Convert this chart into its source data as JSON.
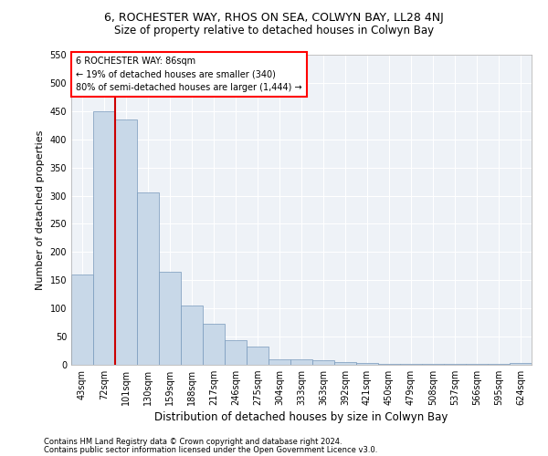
{
  "title1": "6, ROCHESTER WAY, RHOS ON SEA, COLWYN BAY, LL28 4NJ",
  "title2": "Size of property relative to detached houses in Colwyn Bay",
  "xlabel": "Distribution of detached houses by size in Colwyn Bay",
  "ylabel": "Number of detached properties",
  "footer1": "Contains HM Land Registry data © Crown copyright and database right 2024.",
  "footer2": "Contains public sector information licensed under the Open Government Licence v3.0.",
  "annotation_title": "6 ROCHESTER WAY: 86sqm",
  "annotation_line1": "← 19% of detached houses are smaller (340)",
  "annotation_line2": "80% of semi-detached houses are larger (1,444) →",
  "bar_color": "#c8d8e8",
  "bar_edge_color": "#7799bb",
  "red_line_color": "#cc0000",
  "categories": [
    "43sqm",
    "72sqm",
    "101sqm",
    "130sqm",
    "159sqm",
    "188sqm",
    "217sqm",
    "246sqm",
    "275sqm",
    "304sqm",
    "333sqm",
    "363sqm",
    "392sqm",
    "421sqm",
    "450sqm",
    "479sqm",
    "508sqm",
    "537sqm",
    "566sqm",
    "595sqm",
    "624sqm"
  ],
  "values": [
    160,
    450,
    435,
    305,
    165,
    105,
    73,
    44,
    32,
    10,
    10,
    8,
    5,
    3,
    2,
    1,
    1,
    1,
    1,
    1,
    4
  ],
  "red_line_x": 1.5,
  "ylim": [
    0,
    550
  ],
  "yticks": [
    0,
    50,
    100,
    150,
    200,
    250,
    300,
    350,
    400,
    450,
    500,
    550
  ],
  "bg_color": "#eef2f7",
  "grid_color": "#ffffff",
  "title1_fontsize": 9,
  "title2_fontsize": 8.5,
  "xlabel_fontsize": 8.5,
  "ylabel_fontsize": 8,
  "footer_fontsize": 6,
  "tick_fontsize": 7,
  "ann_fontsize": 7
}
